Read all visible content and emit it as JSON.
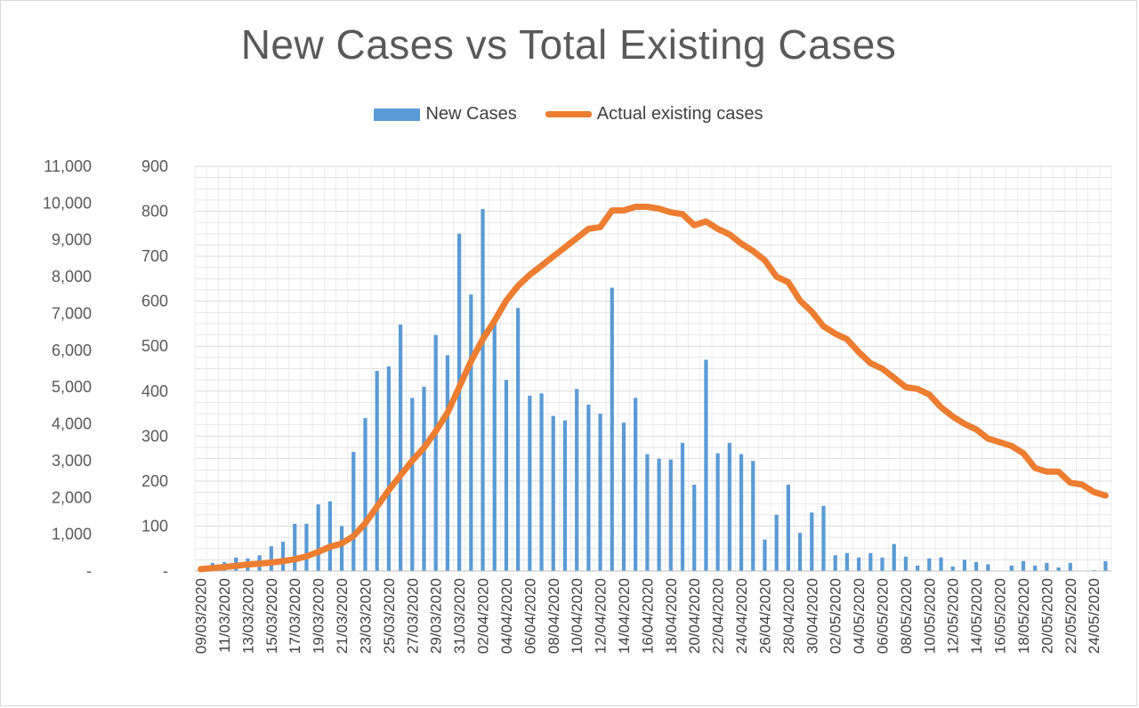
{
  "chart_data": {
    "type": "bar+line",
    "title": "New Cases vs Total Existing Cases",
    "legend": {
      "placement": "top",
      "items": [
        "New Cases",
        "Actual existing cases"
      ]
    },
    "colors": {
      "bars": "#5b9bd5",
      "line": "#ed7d31",
      "grid": "#d9d9d9"
    },
    "grid": true,
    "start_date": "2020-03-09",
    "x_tick_labels": [
      "09/03/2020",
      "11/03/2020",
      "13/03/2020",
      "15/03/2020",
      "17/03/2020",
      "19/03/2020",
      "21/03/2020",
      "23/03/2020",
      "25/03/2020",
      "27/03/2020",
      "29/03/2020",
      "31/03/2020",
      "02/04/2020",
      "04/04/2020",
      "06/04/2020",
      "08/04/2020",
      "10/04/2020",
      "12/04/2020",
      "14/04/2020",
      "16/04/2020",
      "18/04/2020",
      "20/04/2020",
      "22/04/2020",
      "24/04/2020",
      "26/04/2020",
      "28/04/2020",
      "30/04/2020",
      "02/05/2020",
      "04/05/2020",
      "06/05/2020",
      "08/05/2020",
      "10/05/2020",
      "12/05/2020",
      "14/05/2020",
      "16/05/2020",
      "18/05/2020",
      "20/05/2020",
      "22/05/2020",
      "24/05/2020"
    ],
    "y_left": {
      "label": "",
      "range": [
        0,
        11000
      ],
      "ticks": [
        0,
        1000,
        2000,
        3000,
        4000,
        5000,
        6000,
        7000,
        8000,
        9000,
        10000,
        11000
      ],
      "tick_labels": [
        "-",
        "1,000",
        "2,000",
        "3,000",
        "4,000",
        "5,000",
        "6,000",
        "7,000",
        "8,000",
        "9,000",
        "10,000",
        "11,000"
      ]
    },
    "y_right": {
      "label": "",
      "range": [
        0,
        900
      ],
      "ticks": [
        0,
        100,
        200,
        300,
        400,
        500,
        600,
        700,
        800,
        900
      ],
      "tick_labels": [
        "-",
        "100",
        "200",
        "300",
        "400",
        "500",
        "600",
        "700",
        "800",
        "900"
      ]
    },
    "series": [
      {
        "name": "New Cases",
        "kind": "bar",
        "axis": "right",
        "values": [
          10,
          18,
          20,
          30,
          28,
          35,
          55,
          65,
          105,
          105,
          148,
          155,
          100,
          265,
          340,
          445,
          455,
          548,
          385,
          410,
          525,
          480,
          750,
          615,
          805,
          560,
          425,
          585,
          390,
          395,
          345,
          335,
          405,
          370,
          350,
          630,
          330,
          385,
          260,
          250,
          248,
          285,
          192,
          470,
          262,
          285,
          260,
          245,
          70,
          125,
          192,
          85,
          130,
          145,
          35,
          40,
          30,
          40,
          30,
          60,
          32,
          12,
          28,
          30,
          10,
          25,
          20,
          15,
          0,
          12,
          22,
          12,
          18,
          8,
          18,
          0,
          2,
          22
        ]
      },
      {
        "name": "Actual existing cases",
        "kind": "line",
        "axis": "left",
        "values": [
          50,
          80,
          110,
          140,
          180,
          200,
          230,
          270,
          320,
          400,
          520,
          660,
          750,
          950,
          1300,
          1750,
          2200,
          2600,
          3000,
          3350,
          3800,
          4300,
          5000,
          5700,
          6300,
          6800,
          7350,
          7750,
          8050,
          8300,
          8550,
          8800,
          9050,
          9300,
          9350,
          9800,
          9800,
          9900,
          9900,
          9850,
          9750,
          9700,
          9400,
          9500,
          9300,
          9150,
          8900,
          8700,
          8450,
          8000,
          7850,
          7350,
          7050,
          6650,
          6450,
          6300,
          5950,
          5650,
          5500,
          5250,
          5000,
          4950,
          4800,
          4450,
          4200,
          4000,
          3850,
          3600,
          3500,
          3400,
          3200,
          2800,
          2700,
          2700,
          2400,
          2350,
          2150,
          2050
        ]
      }
    ]
  }
}
